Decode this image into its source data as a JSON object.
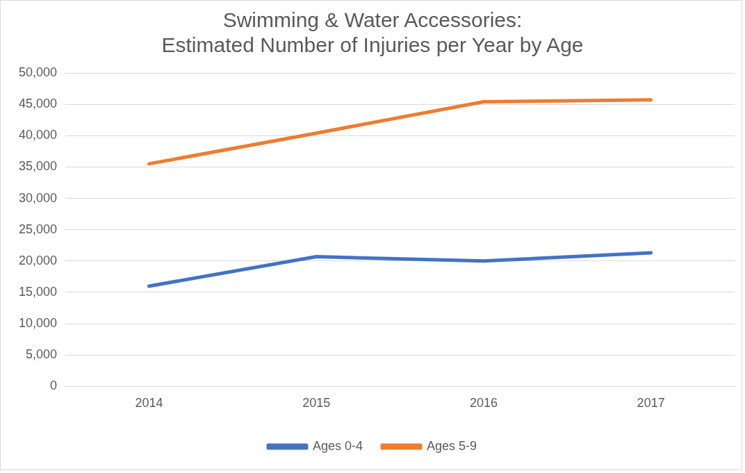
{
  "chart_data": {
    "type": "line",
    "title": "Swimming & Water Accessories:\nEstimated Number of Injuries per Year by Age",
    "categories": [
      "2014",
      "2015",
      "2016",
      "2017"
    ],
    "series": [
      {
        "name": "Ages 0-4",
        "color": "#4472c4",
        "values": [
          16000,
          20700,
          20000,
          21300
        ]
      },
      {
        "name": "Ages 5-9",
        "color": "#ed7d31",
        "values": [
          35500,
          40400,
          45400,
          45700
        ]
      }
    ],
    "ylim": [
      0,
      50000
    ],
    "yticks": [
      0,
      {
        "value": 5000,
        "label": "5,000"
      },
      {
        "value": 10000,
        "label": "10,000"
      },
      {
        "value": 15000,
        "label": "15,000"
      },
      {
        "value": 20000,
        "label": "20,000"
      },
      {
        "value": 25000,
        "label": "25,000"
      },
      {
        "value": 30000,
        "label": "30,000"
      },
      {
        "value": 35000,
        "label": "35,000"
      },
      {
        "value": 40000,
        "label": "40,000"
      },
      {
        "value": 45000,
        "label": "45,000"
      },
      {
        "value": 50000,
        "label": "50,000"
      }
    ],
    "grid": "y",
    "legend": "bottom",
    "marker": "none",
    "line_style": "solid"
  }
}
